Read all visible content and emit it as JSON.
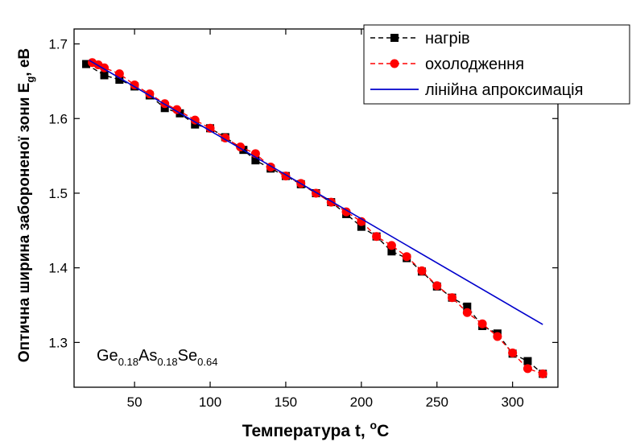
{
  "chart_data": {
    "type": "scatter",
    "xlabel": "Температура t, °C",
    "xlabel_main": "Температура t, ",
    "xlabel_sup": "o",
    "xlabel_tail": "C",
    "ylabel_main": "Оптична ширина забороненої зони E",
    "ylabel_sub": "g",
    "ylabel_tail": ", eВ",
    "xlim": [
      10,
      330
    ],
    "ylim": [
      1.24,
      1.72
    ],
    "xticks": [
      50,
      100,
      150,
      200,
      250,
      300
    ],
    "yticks": [
      1.3,
      1.4,
      1.5,
      1.6,
      1.7
    ],
    "legend_position": "top-right",
    "annotation": {
      "parts": [
        {
          "t": "Ge",
          "sub": false
        },
        {
          "t": "0.18",
          "sub": true
        },
        {
          "t": "As",
          "sub": false
        },
        {
          "t": "0.18",
          "sub": true
        },
        {
          "t": "Se",
          "sub": false
        },
        {
          "t": "0.64",
          "sub": true
        }
      ]
    },
    "series": [
      {
        "name": "нагрів",
        "color": "#000000",
        "marker": "square",
        "line": "dashed",
        "x": [
          18,
          30,
          40,
          50,
          60,
          70,
          80,
          90,
          100,
          110,
          122,
          130,
          140,
          150,
          160,
          170,
          180,
          190,
          200,
          210,
          220,
          230,
          240,
          250,
          260,
          270,
          280,
          290,
          300,
          310,
          320
        ],
        "y": [
          1.673,
          1.658,
          1.652,
          1.643,
          1.631,
          1.614,
          1.607,
          1.592,
          1.587,
          1.575,
          1.558,
          1.544,
          1.533,
          1.523,
          1.512,
          1.5,
          1.488,
          1.472,
          1.455,
          1.442,
          1.422,
          1.413,
          1.395,
          1.375,
          1.36,
          1.348,
          1.322,
          1.312,
          1.285,
          1.275,
          1.258
        ]
      },
      {
        "name": "охолодження",
        "color": "#ff0000",
        "marker": "circle",
        "line": "dashed",
        "x": [
          22,
          26,
          30,
          40,
          50,
          60,
          70,
          78,
          90,
          100,
          110,
          120,
          130,
          140,
          150,
          160,
          170,
          180,
          190,
          200,
          210,
          220,
          230,
          240,
          250,
          260,
          270,
          280,
          290,
          300,
          310,
          320
        ],
        "y": [
          1.675,
          1.672,
          1.668,
          1.66,
          1.645,
          1.633,
          1.62,
          1.612,
          1.598,
          1.587,
          1.574,
          1.562,
          1.553,
          1.535,
          1.523,
          1.513,
          1.5,
          1.488,
          1.475,
          1.462,
          1.442,
          1.43,
          1.415,
          1.396,
          1.376,
          1.36,
          1.34,
          1.325,
          1.308,
          1.286,
          1.265,
          1.258
        ]
      },
      {
        "name": "лінійна апроксимація",
        "color": "#0000cc",
        "marker": "none",
        "line": "solid",
        "x": [
          20,
          320
        ],
        "y": [
          1.678,
          1.324
        ]
      }
    ]
  }
}
